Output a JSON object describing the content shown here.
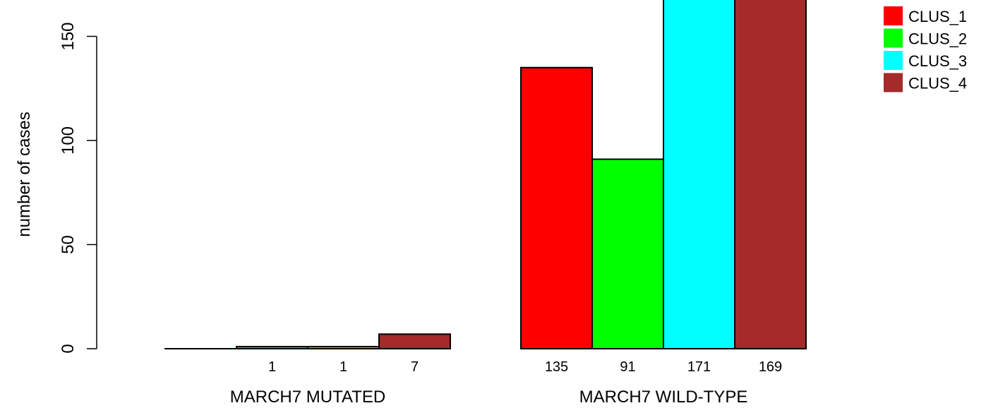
{
  "chart_data": {
    "type": "bar",
    "ylabel": "number of cases",
    "ylim": [
      0,
      150
    ],
    "yticks": [
      0,
      50,
      100,
      150
    ],
    "groups": [
      "MARCH7 MUTATED",
      "MARCH7 WILD-TYPE"
    ],
    "series": [
      {
        "name": "CLUS_1",
        "color": "#ff0000",
        "values": [
          0,
          135
        ],
        "labels": [
          "",
          "135"
        ]
      },
      {
        "name": "CLUS_2",
        "color": "#00ff00",
        "values": [
          1,
          91
        ],
        "labels": [
          "1",
          "91"
        ]
      },
      {
        "name": "CLUS_3",
        "color": "#00ffff",
        "values": [
          1,
          171
        ],
        "labels": [
          "1",
          "171"
        ]
      },
      {
        "name": "CLUS_4",
        "color": "#a52a2a",
        "values": [
          7,
          169
        ],
        "labels": [
          "7",
          "169"
        ]
      }
    ],
    "legend": {
      "position": "top-right"
    }
  }
}
